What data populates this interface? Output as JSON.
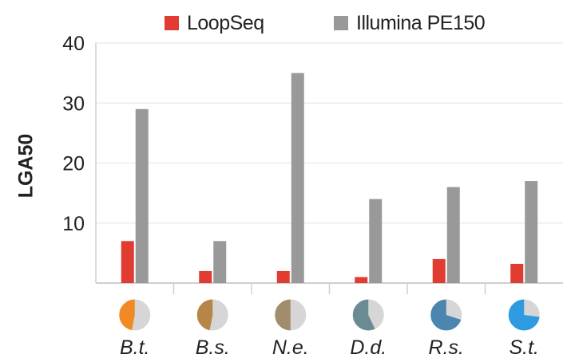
{
  "chart_data": {
    "type": "bar",
    "ylabel": "LGA50",
    "ylim": [
      0,
      40
    ],
    "yticks": [
      10,
      20,
      30,
      40
    ],
    "grid": true,
    "legend_position": "top",
    "categories": [
      "B.t.",
      "B.s.",
      "N.e.",
      "D.d.",
      "R.s.",
      "S.t."
    ],
    "series": [
      {
        "name": "LoopSeq",
        "color": "#e03c31",
        "values": [
          7,
          2,
          2,
          1,
          4,
          3.2
        ]
      },
      {
        "name": "Illumina PE150",
        "color": "#999999",
        "values": [
          29,
          7,
          35,
          14,
          16,
          17
        ]
      }
    ],
    "category_pies": [
      {
        "color": "#f08a24",
        "fraction": 0.47
      },
      {
        "color": "#b68547",
        "fraction": 0.47
      },
      {
        "color": "#a18d6b",
        "fraction": 0.5
      },
      {
        "color": "#6b8b93",
        "fraction": 0.57
      },
      {
        "color": "#4a86b0",
        "fraction": 0.7
      },
      {
        "color": "#2e9be0",
        "fraction": 0.73
      }
    ],
    "pie_background": "#d6d6d6"
  }
}
